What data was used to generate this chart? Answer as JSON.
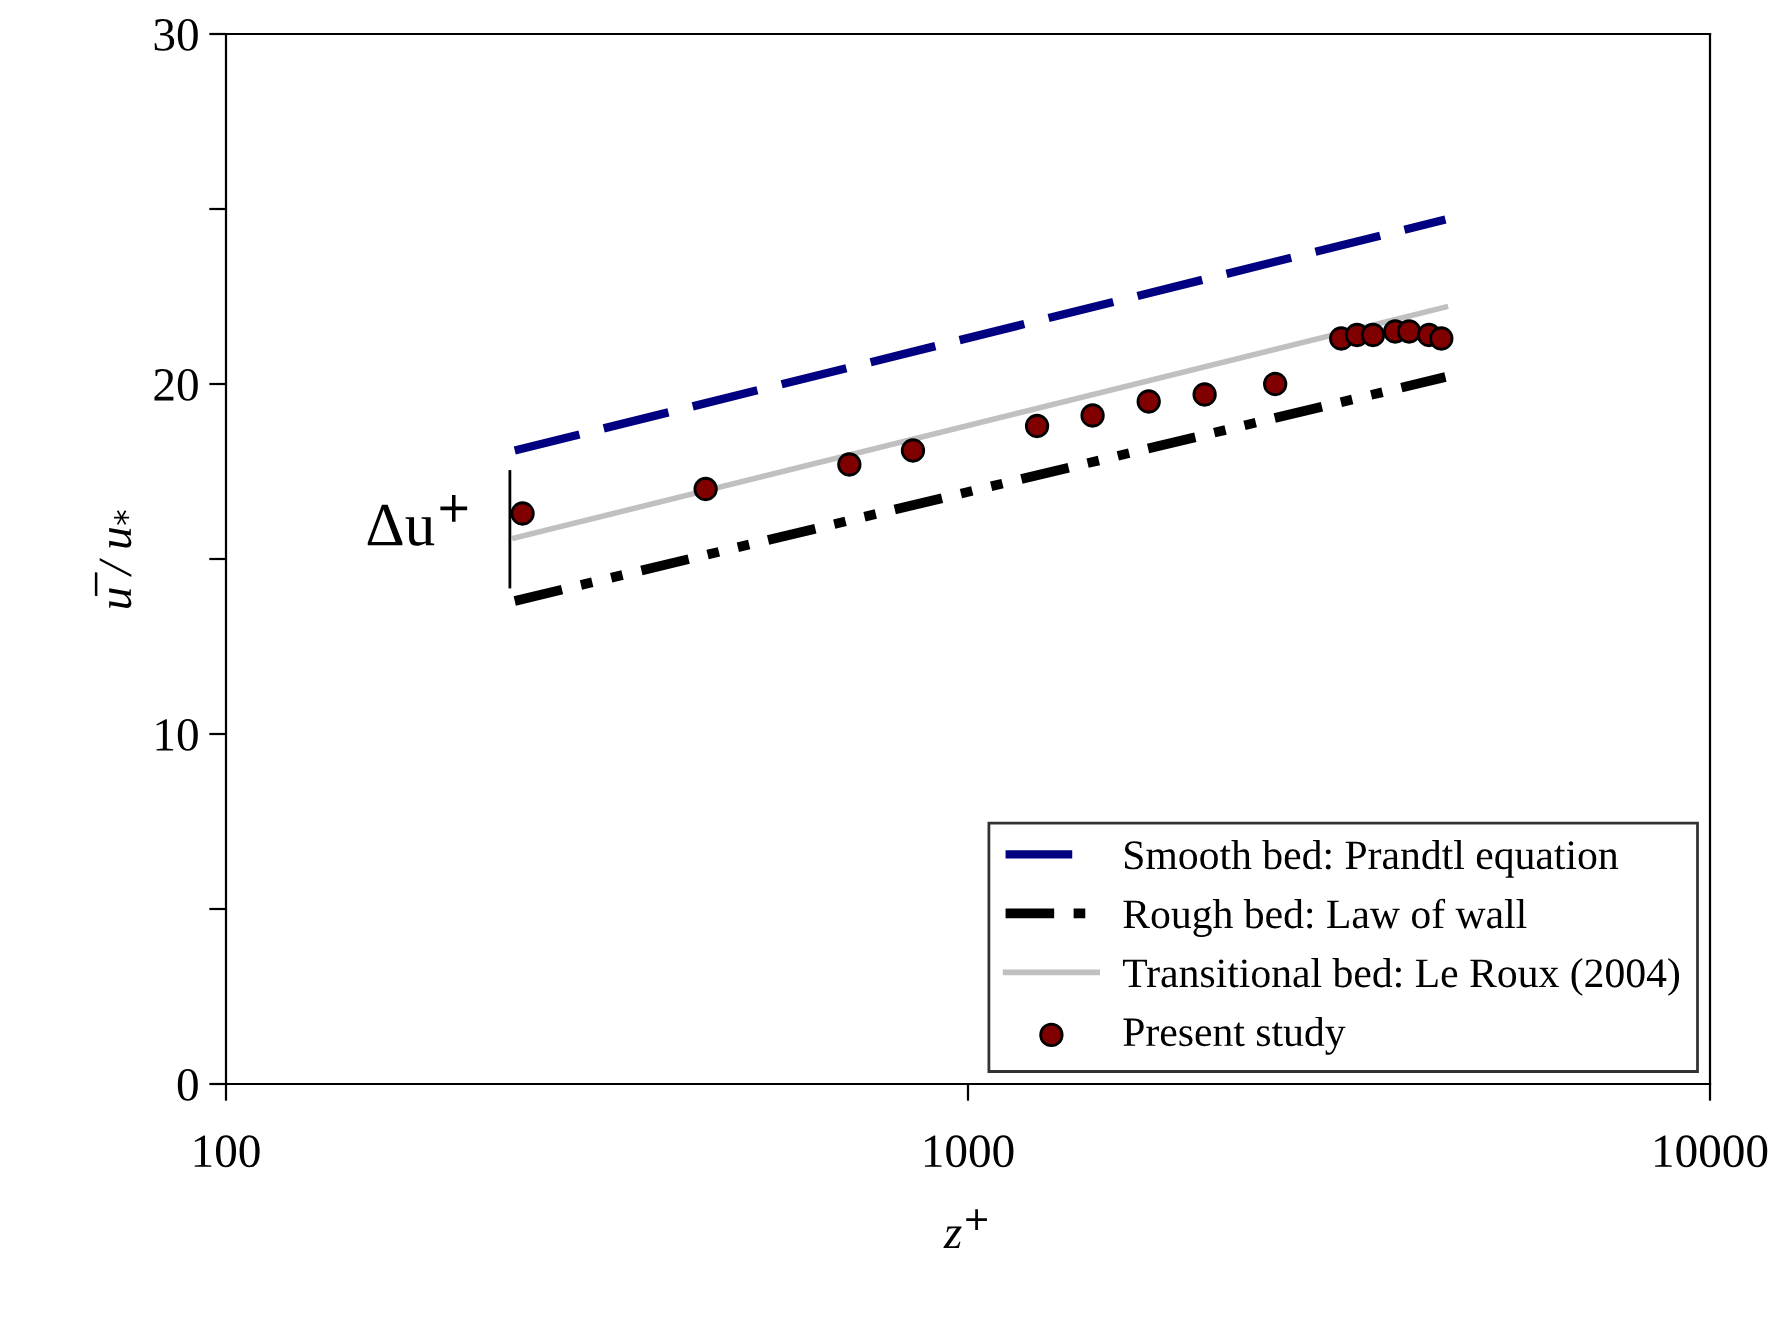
{
  "chart_data": {
    "type": "line",
    "xlabel": "z$^{+}$",
    "ylabel": "u̅ / u$_{*}$",
    "log": "x",
    "xlim": [
      100,
      10000
    ],
    "xticks": [
      100,
      1000,
      10000
    ],
    "ylim": [
      0,
      30
    ],
    "yticks": [
      0,
      {
        "value": 5,
        "label": null
      },
      10,
      {
        "value": 15,
        "label": null
      },
      20,
      {
        "value": 25,
        "label": null
      },
      30
    ],
    "grid": false,
    "legend": "bottom right",
    "annotations": [
      {
        "text": "Δu$^{+}$",
        "x": 245,
        "y": 15.8
      }
    ],
    "series": [
      {
        "name": "Smooth bed: Prandtl equation",
        "color": "#000080",
        "line_style": "dashed",
        "x": [
          245,
          4400
        ],
        "values": [
          18.1,
          24.7
        ]
      },
      {
        "name": "Rough bed: Law of wall",
        "color": "#000000",
        "line_style": "dotted",
        "x": [
          245,
          4400
        ],
        "values": [
          13.8,
          20.2
        ]
      },
      {
        "name": "Transitional bed: Le Roux (2004)",
        "color": "#c0c0c0",
        "line_style": "solid",
        "x": [
          245,
          4400
        ],
        "values": [
          15.6,
          22.2
        ]
      },
      {
        "name": "Present study",
        "type": "scatter",
        "color": "#800000",
        "marker": "circle",
        "x": [
          251,
          443,
          692,
          843,
          1239,
          1472,
          1752,
          2084,
          2594,
          3184,
          3344,
          3514,
          3765,
          3931,
          4182,
          4344
        ],
        "values": [
          16.3,
          17.0,
          17.7,
          18.1,
          18.8,
          19.1,
          19.5,
          19.7,
          20.0,
          21.3,
          21.4,
          21.4,
          21.5,
          21.5,
          21.4,
          21.3
        ]
      }
    ]
  }
}
